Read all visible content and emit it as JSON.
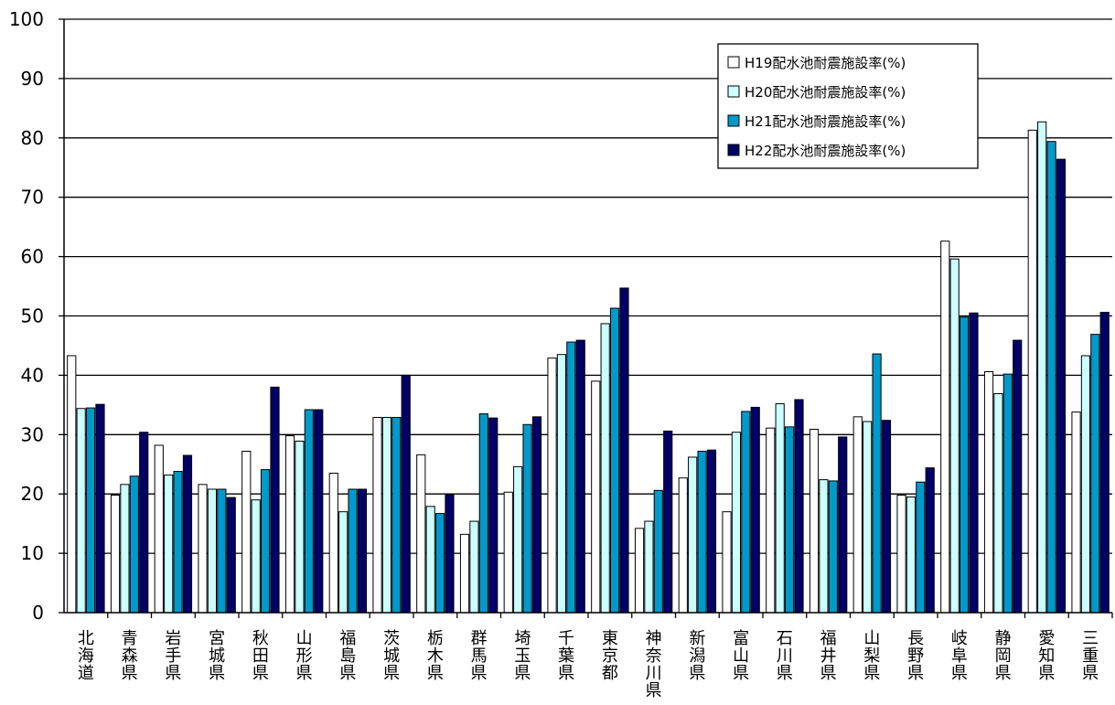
{
  "chart_data": {
    "type": "bar",
    "ylim": [
      0,
      100
    ],
    "yticks": [
      0,
      10,
      20,
      30,
      40,
      50,
      60,
      70,
      80,
      90,
      100
    ],
    "grid": true,
    "legend_position": "top-right",
    "categories": [
      "北海道",
      "青森県",
      "岩手県",
      "宮城県",
      "秋田県",
      "山形県",
      "福島県",
      "茨城県",
      "栃木県",
      "群馬県",
      "埼玉県",
      "千葉県",
      "東京都",
      "神奈川県",
      "新潟県",
      "富山県",
      "石川県",
      "福井県",
      "山梨県",
      "長野県",
      "岐阜県",
      "静岡県",
      "愛知県",
      "三重県"
    ],
    "series": [
      {
        "name": "H19配水池耐震施設率(%)",
        "color": "#ffffff",
        "values": [
          43.3,
          19.8,
          28.2,
          21.6,
          27.2,
          29.8,
          23.5,
          32.9,
          26.6,
          13.2,
          20.3,
          42.9,
          39.0,
          14.2,
          22.7,
          17.0,
          31.1,
          30.9,
          33.0,
          19.8,
          62.6,
          40.6,
          81.3,
          33.8
        ]
      },
      {
        "name": "H20配水池耐震施設率(%)",
        "color": "#ccffff",
        "values": [
          34.4,
          21.6,
          23.2,
          20.8,
          19.0,
          28.9,
          17.0,
          32.9,
          17.9,
          15.4,
          24.6,
          43.5,
          48.7,
          15.4,
          26.2,
          30.4,
          35.2,
          22.4,
          32.2,
          19.5,
          59.6,
          36.9,
          82.7,
          43.3
        ]
      },
      {
        "name": "H21配水池耐震施設率(%)",
        "color": "#0099cc",
        "values": [
          34.5,
          23.0,
          23.8,
          20.8,
          24.1,
          34.2,
          20.8,
          32.9,
          16.7,
          33.5,
          31.7,
          45.6,
          51.3,
          20.6,
          27.2,
          33.9,
          31.3,
          22.2,
          43.6,
          22.0,
          49.8,
          40.2,
          79.4,
          46.9
        ]
      },
      {
        "name": "H22配水池耐震施設率(%)",
        "color": "#000066",
        "values": [
          35.1,
          30.4,
          26.5,
          19.4,
          38.0,
          34.2,
          20.8,
          40.0,
          19.9,
          32.8,
          33.0,
          45.9,
          54.7,
          30.6,
          27.4,
          34.6,
          35.9,
          29.6,
          32.4,
          24.4,
          50.5,
          45.9,
          76.4,
          50.6
        ]
      }
    ]
  }
}
